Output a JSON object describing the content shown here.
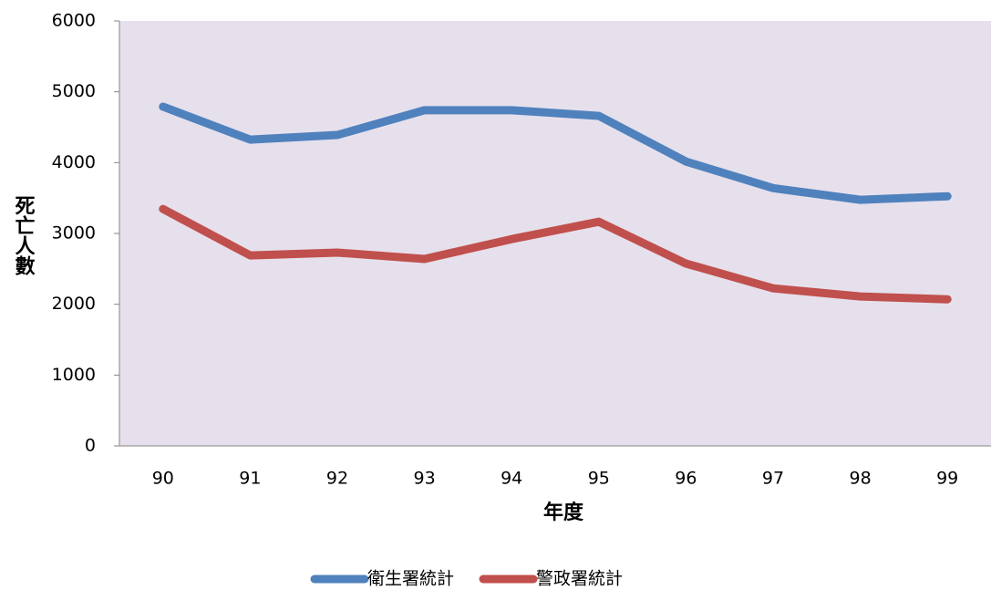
{
  "chart_data": {
    "type": "line",
    "x_label": "年度",
    "y_label": "死亡人數",
    "categories": [
      "90",
      "91",
      "92",
      "93",
      "94",
      "95",
      "96",
      "97",
      "98",
      "99"
    ],
    "series": [
      {
        "name": "衛生署統計",
        "color": "#4f81bd",
        "values": [
          4790,
          4325,
          4390,
          4740,
          4740,
          4660,
          4015,
          3640,
          3475,
          3525
        ]
      },
      {
        "name": "警政署統計",
        "color": "#c0504d",
        "values": [
          3345,
          2690,
          2730,
          2640,
          2920,
          3165,
          2575,
          2225,
          2110,
          2070
        ]
      }
    ],
    "ylim": [
      0,
      6000
    ],
    "yticks": [
      0,
      1000,
      2000,
      3000,
      4000,
      5000,
      6000
    ],
    "legend": "bottom",
    "plot_background": "#e6e0ec"
  }
}
